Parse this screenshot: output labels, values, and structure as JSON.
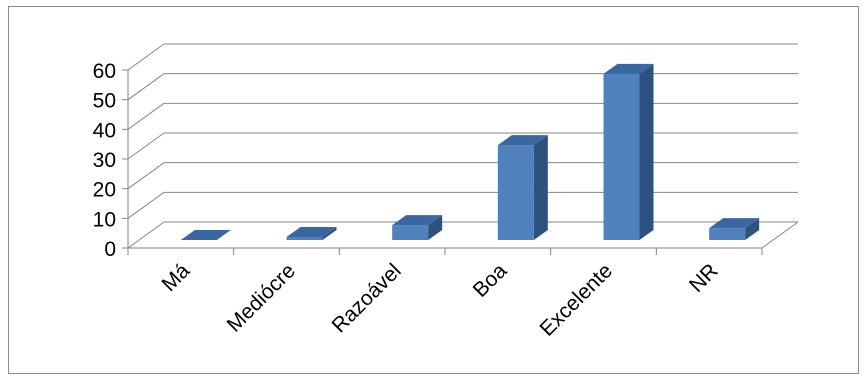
{
  "chart_data": {
    "type": "bar",
    "style": "3d-column",
    "title": "",
    "xlabel": "",
    "ylabel": "",
    "categories": [
      "Má",
      "Mediócre",
      "Razoável",
      "Boa",
      "Excelente",
      "NR"
    ],
    "values": [
      0,
      1,
      5,
      32,
      56,
      4
    ],
    "ylim": [
      0,
      60
    ],
    "yticks": [
      "0",
      "10",
      "20",
      "30",
      "40",
      "50",
      "60"
    ],
    "grid": true,
    "legend": "none",
    "colors": {
      "bar_front": "#4F81BD",
      "bar_side": "#2E527F",
      "bar_top": "#3B67A0",
      "grid": "#868686"
    }
  }
}
